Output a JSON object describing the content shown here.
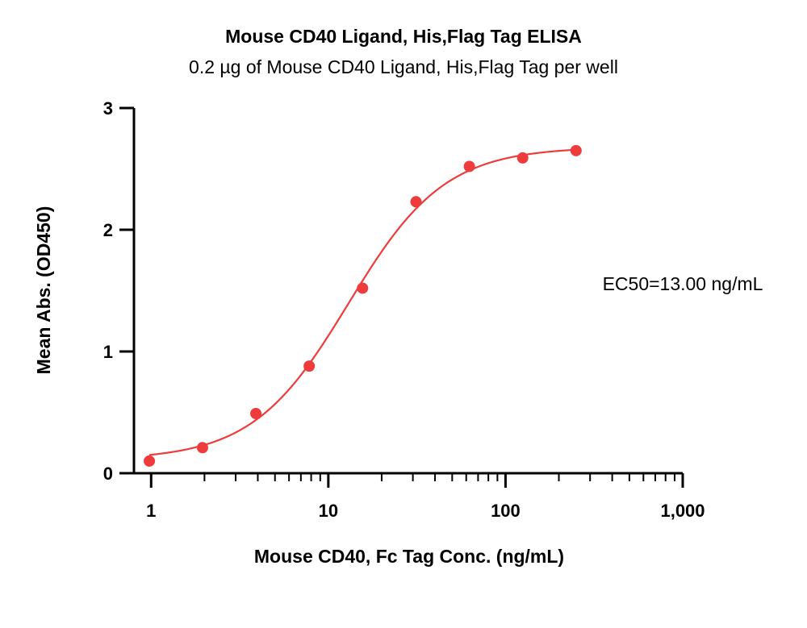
{
  "chart_data": {
    "type": "scatter",
    "title": "Mouse CD40 Ligand, His,Flag Tag ELISA",
    "subtitle": "0.2 µg of Mouse CD40 Ligand, His,Flag Tag per well",
    "xlabel": "Mouse CD40, Fc Tag Conc. (ng/mL)",
    "ylabel": "Mean Abs. (OD450)",
    "x_scale": "log",
    "xlim": [
      0.8,
      1000
    ],
    "ylim": [
      0,
      3
    ],
    "x_ticks": [
      1,
      10,
      100,
      1000
    ],
    "x_tick_labels": [
      "1",
      "10",
      "100",
      "1,000"
    ],
    "y_ticks": [
      0,
      1,
      2,
      3
    ],
    "y_tick_labels": [
      "0",
      "1",
      "2",
      "3"
    ],
    "grid": false,
    "annotation": "EC50=13.00 ng/mL",
    "series": [
      {
        "color": "#ee3b3b",
        "x": [
          0.977,
          1.95,
          3.9,
          7.8,
          15.6,
          31.25,
          62.5,
          125,
          250
        ],
        "y": [
          0.1,
          0.21,
          0.49,
          0.88,
          1.52,
          2.23,
          2.52,
          2.59,
          2.65
        ],
        "fit": {
          "model": "4PL",
          "bottom": 0.11,
          "top": 2.68,
          "ec50": 13.0,
          "hill": 1.6
        }
      }
    ]
  }
}
